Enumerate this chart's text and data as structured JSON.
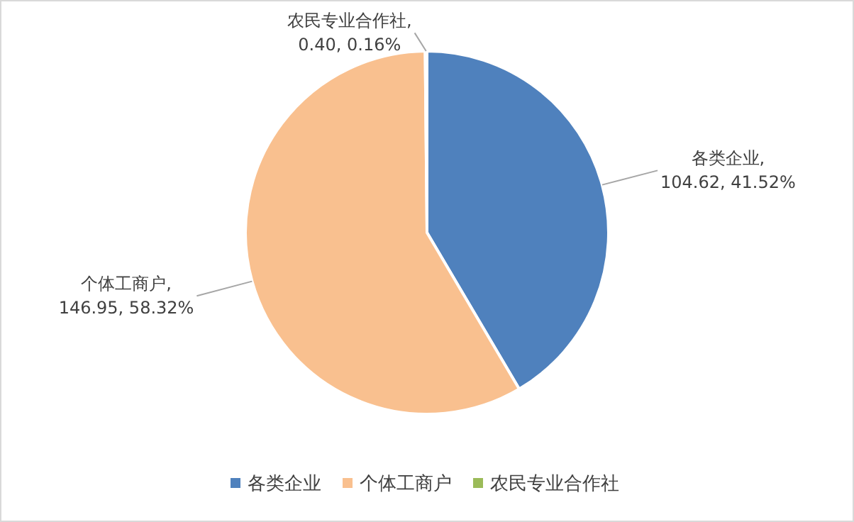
{
  "chart_data": {
    "type": "pie",
    "categories": [
      "各类企业",
      "个体工商户",
      "农民专业合作社"
    ],
    "values": [
      104.62,
      146.95,
      0.4
    ],
    "colors": [
      "#4f81bd",
      "#f9c08f",
      "#9bbb59"
    ],
    "value_labels": [
      "各类企业,\n104.62, 41.52%",
      "个体工商户,\n146.95, 58.32%",
      "农民专业合作社,\n0.40, 0.16%"
    ],
    "legend": "bottom"
  }
}
